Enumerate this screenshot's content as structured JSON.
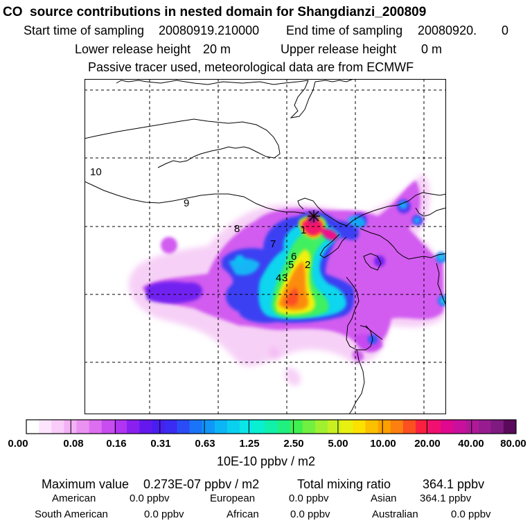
{
  "header": {
    "title": "CO  source contributions in nested domain for Shangdianzi_200809",
    "start_label": "Start time of sampling",
    "start_value": "20080919.210000",
    "end_label": "End time of sampling",
    "end_value": "20080920.",
    "end_value2": "0",
    "lower_label": "Lower release height",
    "lower_value": "20 m",
    "upper_label": "Upper release height",
    "upper_value": "0 m",
    "note": "Passive tracer used, meteorological data are from ECMWF"
  },
  "map": {
    "point_labels": [
      "1",
      "2",
      "3",
      "4",
      "5",
      "6",
      "7",
      "8",
      "9",
      "10"
    ],
    "marker_icon": "receptor-star-icon"
  },
  "colorbar": {
    "tick_labels": [
      "0.00",
      "0.08",
      "0.16",
      "0.31",
      "0.63",
      "1.25",
      "2.50",
      "5.00",
      "10.00",
      "20.00",
      "40.00",
      "80.00"
    ],
    "unit": "10E-10 ppbv / m2",
    "colors": [
      "#ffffff",
      "#fde6fd",
      "#f9ccf9",
      "#f3b0f5",
      "#ea92f1",
      "#dd6ef0",
      "#c94cf0",
      "#b034f2",
      "#8a20f0",
      "#6418ee",
      "#4a1ef0",
      "#3a2cf2",
      "#2a4cf6",
      "#1a74f8",
      "#1096f8",
      "#0cb6f6",
      "#0ad0f0",
      "#0ae6e8",
      "#08f0d0",
      "#10f0a8",
      "#20f080",
      "#40f050",
      "#70f040",
      "#a0f030",
      "#c8f020",
      "#e8f010",
      "#fce000",
      "#fcc000",
      "#fca000",
      "#fc8010",
      "#fc5020",
      "#fa2040",
      "#f01070",
      "#e0088e",
      "#c8109c",
      "#b01898",
      "#981c90",
      "#7e1a80",
      "#5a0a5a"
    ]
  },
  "summary": {
    "max_label": "Maximum value",
    "max_value": "0.273E-07 ppbv / m2",
    "total_label": "Total mixing ratio",
    "total_value": "364.1 ppbv",
    "regions": [
      {
        "name": "American",
        "value": "0.0 ppbv"
      },
      {
        "name": "European",
        "value": "0.0 ppbv"
      },
      {
        "name": "Asian",
        "value": "364.1 ppbv"
      },
      {
        "name": "South American",
        "value": "0.0 ppbv"
      },
      {
        "name": "African",
        "value": "0.0 ppbv"
      },
      {
        "name": "Australian",
        "value": "0.0 ppbv"
      }
    ]
  }
}
